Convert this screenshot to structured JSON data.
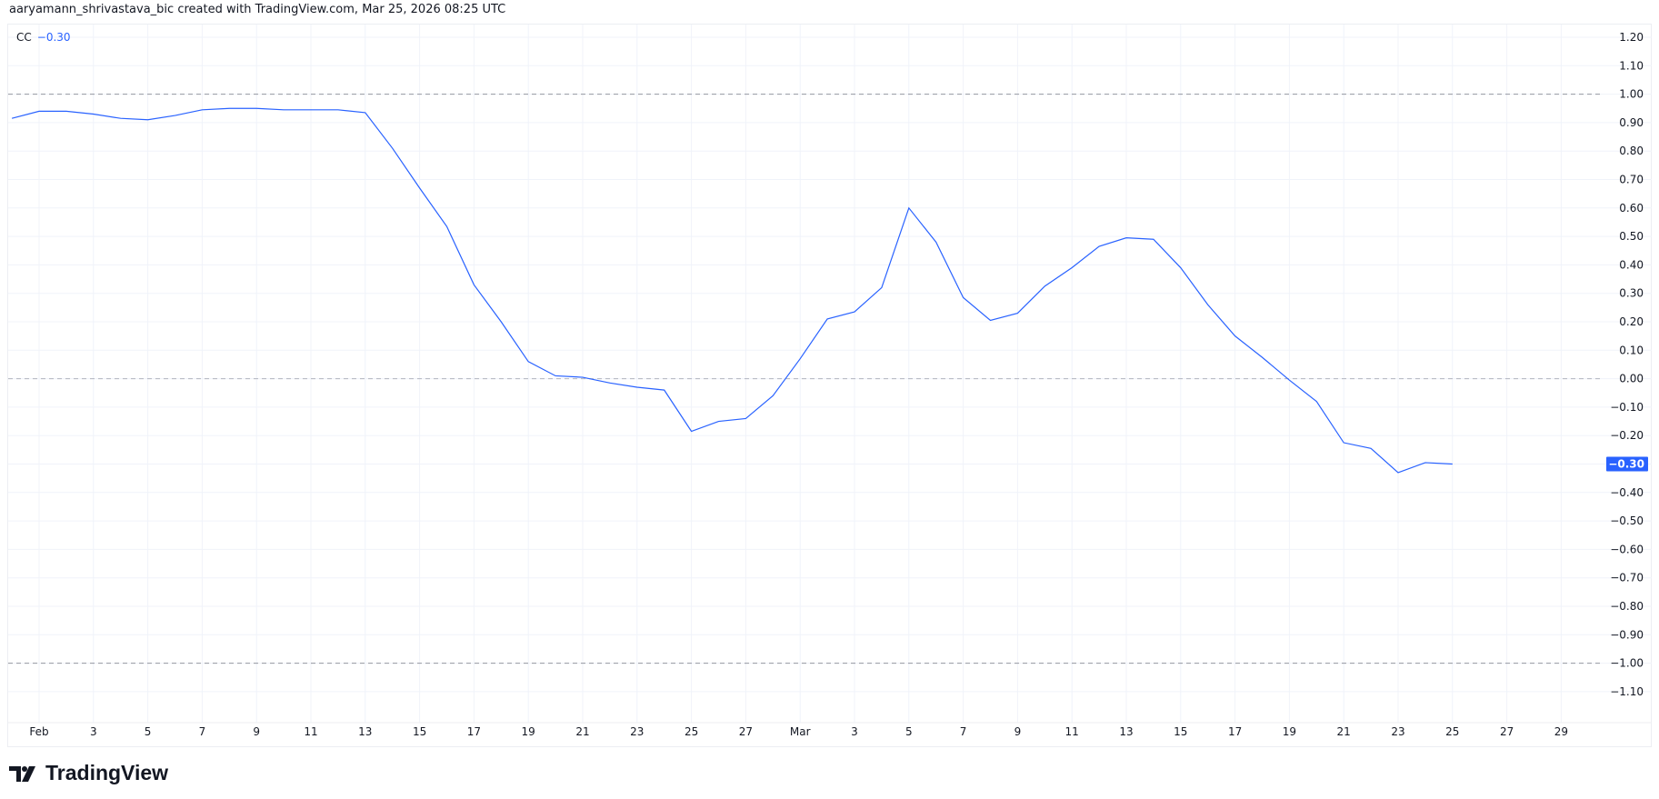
{
  "header": {
    "attribution": "aaryamann_shrivastava_bic created with TradingView.com, Mar 25, 2026 08:25 UTC"
  },
  "legend": {
    "symbol": "CC",
    "value": "−0.30"
  },
  "logo": {
    "text": "TradingView"
  },
  "colors": {
    "line": "#2962ff",
    "grid": "#f0f3fa",
    "dashed": "#9598a1",
    "text": "#131722"
  },
  "chart_data": {
    "type": "line",
    "title": "",
    "xlabel": "",
    "ylabel": "",
    "ylim": [
      -1.2,
      1.25
    ],
    "xlim": [
      "2026-01-31",
      "2026-03-31"
    ],
    "grid": true,
    "y_ticks": [
      "1.20",
      "1.10",
      "1.00",
      "0.90",
      "0.80",
      "0.70",
      "0.60",
      "0.50",
      "0.40",
      "0.30",
      "0.20",
      "0.10",
      "0.00",
      "−0.10",
      "−0.20",
      "−0.30",
      "−0.40",
      "−0.50",
      "−0.60",
      "−0.70",
      "−0.80",
      "−0.90",
      "−1.00",
      "−1.10"
    ],
    "x_ticks": [
      {
        "date": "2026-02-01",
        "label": "Feb"
      },
      {
        "date": "2026-02-03",
        "label": "3"
      },
      {
        "date": "2026-02-05",
        "label": "5"
      },
      {
        "date": "2026-02-07",
        "label": "7"
      },
      {
        "date": "2026-02-09",
        "label": "9"
      },
      {
        "date": "2026-02-11",
        "label": "11"
      },
      {
        "date": "2026-02-13",
        "label": "13"
      },
      {
        "date": "2026-02-15",
        "label": "15"
      },
      {
        "date": "2026-02-17",
        "label": "17"
      },
      {
        "date": "2026-02-19",
        "label": "19"
      },
      {
        "date": "2026-02-21",
        "label": "21"
      },
      {
        "date": "2026-02-23",
        "label": "23"
      },
      {
        "date": "2026-02-25",
        "label": "25"
      },
      {
        "date": "2026-02-27",
        "label": "27"
      },
      {
        "date": "2026-03-01",
        "label": "Mar"
      },
      {
        "date": "2026-03-03",
        "label": "3"
      },
      {
        "date": "2026-03-05",
        "label": "5"
      },
      {
        "date": "2026-03-07",
        "label": "7"
      },
      {
        "date": "2026-03-09",
        "label": "9"
      },
      {
        "date": "2026-03-11",
        "label": "11"
      },
      {
        "date": "2026-03-13",
        "label": "13"
      },
      {
        "date": "2026-03-15",
        "label": "15"
      },
      {
        "date": "2026-03-17",
        "label": "17"
      },
      {
        "date": "2026-03-19",
        "label": "19"
      },
      {
        "date": "2026-03-21",
        "label": "21"
      },
      {
        "date": "2026-03-23",
        "label": "23"
      },
      {
        "date": "2026-03-25",
        "label": "25"
      },
      {
        "date": "2026-03-27",
        "label": "27"
      },
      {
        "date": "2026-03-29",
        "label": "29"
      }
    ],
    "reference_lines": [
      1.0,
      0.0,
      -1.0
    ],
    "last_value_label": "−0.30",
    "series": [
      {
        "x": [
          "2026-01-31",
          "2026-02-01",
          "2026-02-02",
          "2026-02-03",
          "2026-02-04",
          "2026-02-05",
          "2026-02-06",
          "2026-02-07",
          "2026-02-08",
          "2026-02-09",
          "2026-02-10",
          "2026-02-11",
          "2026-02-12",
          "2026-02-13",
          "2026-02-14",
          "2026-02-15",
          "2026-02-16",
          "2026-02-17",
          "2026-02-18",
          "2026-02-19",
          "2026-02-20",
          "2026-02-21",
          "2026-02-22",
          "2026-02-23",
          "2026-02-24",
          "2026-02-25",
          "2026-02-26",
          "2026-02-27",
          "2026-02-28",
          "2026-03-01",
          "2026-03-02",
          "2026-03-03",
          "2026-03-04",
          "2026-03-05",
          "2026-03-06",
          "2026-03-07",
          "2026-03-08",
          "2026-03-09",
          "2026-03-10",
          "2026-03-11",
          "2026-03-12",
          "2026-03-13",
          "2026-03-14",
          "2026-03-15",
          "2026-03-16",
          "2026-03-17",
          "2026-03-18",
          "2026-03-19",
          "2026-03-20",
          "2026-03-21",
          "2026-03-22",
          "2026-03-23",
          "2026-03-24",
          "2026-03-25"
        ],
        "y": [
          0.915,
          0.94,
          0.94,
          0.93,
          0.915,
          0.91,
          0.925,
          0.945,
          0.95,
          0.95,
          0.945,
          0.945,
          0.945,
          0.935,
          0.81,
          0.67,
          0.535,
          0.33,
          0.2,
          0.06,
          0.01,
          0.005,
          -0.015,
          -0.03,
          -0.04,
          -0.185,
          -0.15,
          -0.14,
          -0.06,
          0.07,
          0.21,
          0.235,
          0.32,
          0.6,
          0.48,
          0.285,
          0.205,
          0.23,
          0.325,
          0.39,
          0.465,
          0.495,
          0.49,
          0.39,
          0.26,
          0.15,
          0.075,
          -0.005,
          -0.08,
          -0.225,
          -0.245,
          -0.33,
          -0.295,
          -0.3
        ]
      }
    ]
  }
}
